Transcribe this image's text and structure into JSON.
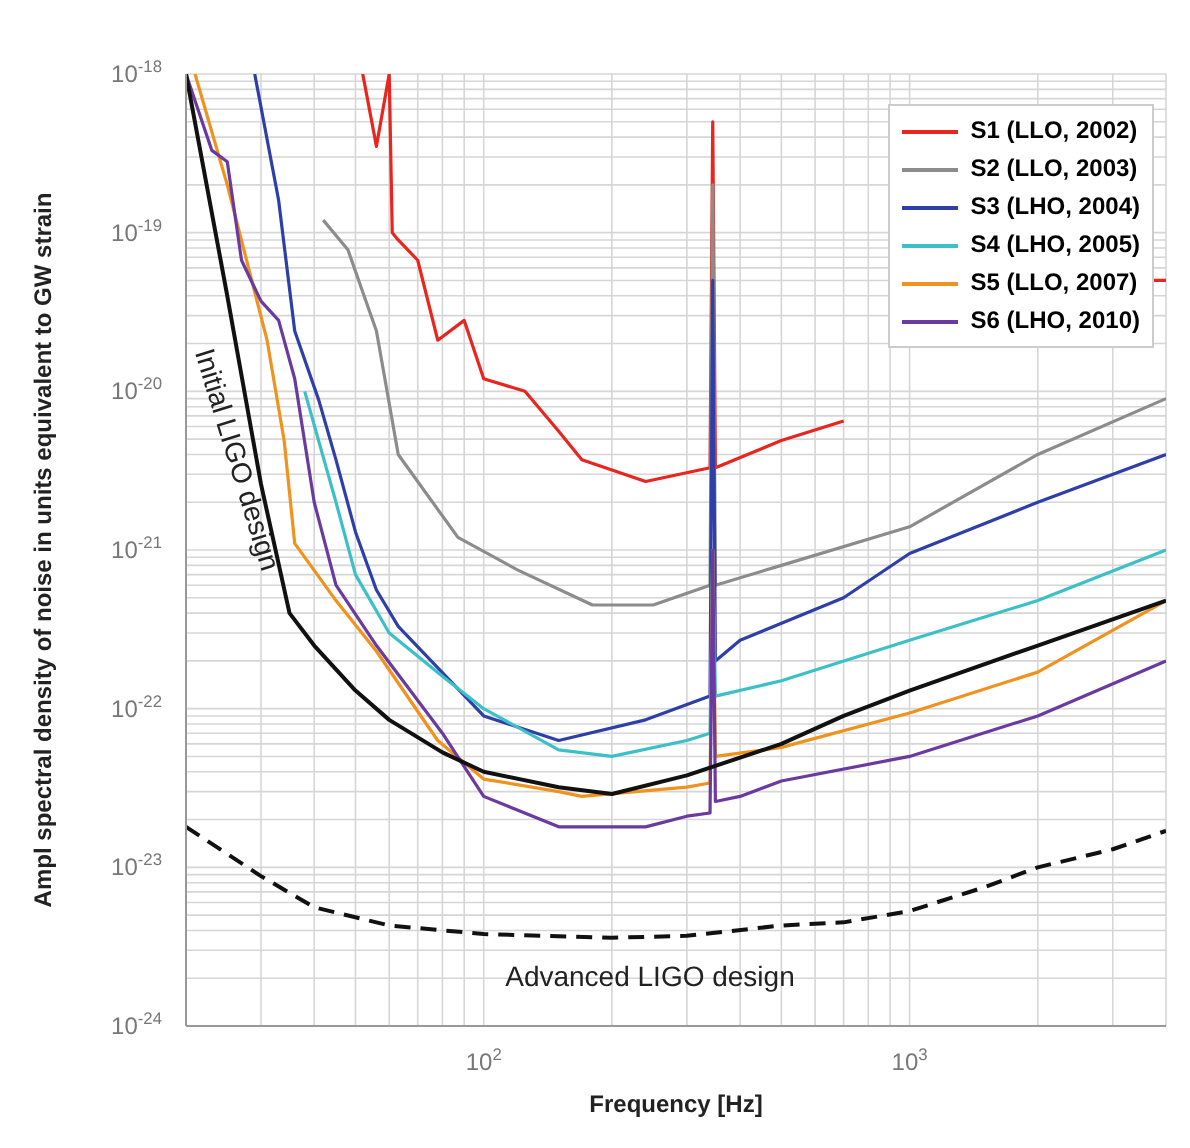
{
  "chart_data": {
    "type": "line",
    "xlabel": "Frequency [Hz]",
    "ylabel": "Ampl spectral density of noise in units equivalent to GW strain",
    "log": "xy",
    "grid": true,
    "legend": "top right",
    "xlim": [
      20,
      4000
    ],
    "ylim": [
      1e-24,
      1e-18
    ],
    "xticks": [
      {
        "value": 100,
        "label": "10$^{2}$"
      },
      {
        "value": 1000,
        "label": "10$^{3}$"
      }
    ],
    "yticks": [
      {
        "value": 1e-24,
        "label": "10$^{-24}$"
      },
      {
        "value": 1e-23,
        "label": "10$^{-23}$"
      },
      {
        "value": 1e-22,
        "label": "10$^{-22}$"
      },
      {
        "value": 1e-21,
        "label": "10$^{-21}$"
      },
      {
        "value": 1e-20,
        "label": "10$^{-20}$"
      },
      {
        "value": 1e-19,
        "label": "10$^{-19}$"
      },
      {
        "value": 1e-18,
        "label": "10$^{-18}$"
      }
    ],
    "series": [
      {
        "name": "S1 (LLO, 2002)",
        "color": "#e8251f",
        "x": [
          52,
          56,
          60,
          61,
          63,
          70,
          78,
          90,
          100,
          125,
          150,
          170,
          240,
          340,
          345,
          350,
          500,
          700,
          1000,
          2000,
          3500,
          3600,
          3700,
          4000
        ],
        "values": [
          1e-18,
          3.5e-19,
          1e-18,
          1e-19,
          9e-20,
          6.7e-20,
          2.1e-20,
          2.8e-20,
          1.2e-20,
          1e-20,
          5.6e-21,
          3.7e-21,
          2.7e-21,
          3.3e-21,
          5e-19,
          3.3e-21,
          4.9e-21,
          6.5e-21,
          null,
          null,
          null,
          5e-20,
          5e-20,
          5e-20
        ]
      },
      {
        "name": "S2 (LLO, 2003)",
        "color": "#8c8c8c",
        "x": [
          42,
          48,
          56,
          63,
          87,
          120,
          180,
          250,
          340,
          345,
          350,
          500,
          1000,
          2000,
          4000
        ],
        "values": [
          1.2e-19,
          7.8e-20,
          2.4e-20,
          4e-21,
          1.2e-21,
          7.5e-22,
          4.5e-22,
          4.5e-22,
          6e-22,
          2e-19,
          6e-22,
          8e-22,
          1.4e-21,
          4e-21,
          9e-21
        ]
      },
      {
        "name": "S3 (LHO, 2004)",
        "color": "#2e3fa8",
        "x": [
          29,
          33,
          36,
          41,
          45,
          50,
          56,
          63,
          100,
          150,
          240,
          340,
          345,
          350,
          400,
          700,
          1000,
          2000,
          4000
        ],
        "values": [
          1e-18,
          1.6e-19,
          2.4e-20,
          8.8e-21,
          3.7e-21,
          1.3e-21,
          5.6e-22,
          3.3e-22,
          9e-23,
          6.3e-23,
          8.5e-23,
          1.2e-22,
          5e-20,
          2e-22,
          2.7e-22,
          5e-22,
          9.5e-22,
          2e-21,
          4e-21
        ]
      },
      {
        "name": "S4 (LHO, 2005)",
        "color": "#3cc0c8",
        "x": [
          38,
          45,
          50,
          60,
          80,
          100,
          150,
          200,
          300,
          340,
          345,
          350,
          500,
          1000,
          2000,
          4000
        ],
        "values": [
          1e-20,
          2e-21,
          7e-22,
          3e-22,
          1.6e-22,
          1e-22,
          5.5e-23,
          5e-23,
          6.3e-23,
          7e-23,
          1e-21,
          1.2e-22,
          1.5e-22,
          2.7e-22,
          4.8e-22,
          1e-21
        ]
      },
      {
        "name": "S5 (LLO, 2007)",
        "color": "#f0921e",
        "x": [
          21,
          25,
          31,
          34,
          36,
          45,
          56,
          78,
          100,
          150,
          170,
          300,
          340,
          345,
          350,
          500,
          1000,
          2000,
          4000
        ],
        "values": [
          1e-18,
          2e-19,
          2.1e-20,
          4.9e-21,
          1.1e-21,
          4.8e-22,
          2.3e-22,
          6.3e-23,
          3.6e-23,
          3e-23,
          2.8e-23,
          3.2e-23,
          3.4e-23,
          1e-21,
          5e-23,
          5.7e-23,
          9.4e-23,
          1.7e-22,
          4.8e-22
        ]
      },
      {
        "name": "S6 (LHO, 2010)",
        "color": "#6a3aa0",
        "x": [
          20,
          23,
          25,
          27,
          30,
          33,
          36,
          40,
          45,
          56,
          80,
          100,
          150,
          240,
          300,
          340,
          345,
          350,
          400,
          500,
          1000,
          2000,
          4000
        ],
        "values": [
          1e-18,
          3.3e-19,
          2.8e-19,
          6.7e-20,
          3.7e-20,
          2.8e-20,
          1.2e-20,
          2e-21,
          6e-22,
          2.5e-22,
          7e-23,
          2.8e-23,
          1.8e-23,
          1.8e-23,
          2.1e-23,
          2.2e-23,
          1e-21,
          2.6e-23,
          2.8e-23,
          3.5e-23,
          5e-23,
          9e-23,
          2e-22
        ]
      },
      {
        "color": "#111111",
        "line_style": "solid",
        "x": [
          20,
          25,
          30,
          35,
          40,
          50,
          60,
          80,
          100,
          150,
          200,
          300,
          500,
          700,
          1000,
          2000,
          4000
        ],
        "values": [
          1e-18,
          4e-20,
          2.6e-21,
          4e-22,
          2.5e-22,
          1.3e-22,
          8.5e-23,
          5.3e-23,
          4e-23,
          3.2e-23,
          2.9e-23,
          3.8e-23,
          6e-23,
          9e-23,
          1.3e-22,
          2.5e-22,
          4.8e-22
        ]
      },
      {
        "color": "#111111",
        "line_style": "dashed",
        "x": [
          20,
          30,
          40,
          60,
          100,
          200,
          300,
          500,
          700,
          1000,
          1500,
          2000,
          3000,
          4000
        ],
        "values": [
          1.8e-23,
          8.8e-24,
          5.6e-24,
          4.3e-24,
          3.8e-24,
          3.6e-24,
          3.7e-24,
          4.3e-24,
          4.5e-24,
          5.3e-24,
          7.5e-24,
          1e-23,
          1.3e-23,
          1.7e-23
        ]
      }
    ],
    "annotations": [
      "Initial LIGO design",
      "Advanced LIGO design"
    ]
  }
}
